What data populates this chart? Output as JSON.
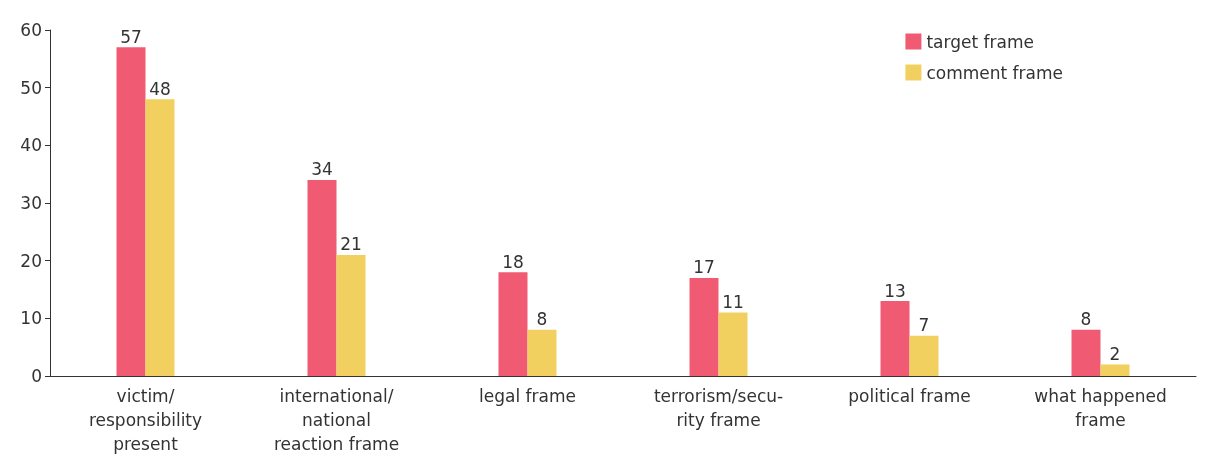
{
  "chart_data": {
    "type": "bar",
    "categories": [
      "victim/\nresponsibility\npresent",
      "international/\nnational\nreaction frame",
      "legal frame",
      "terrorism/secu-\nrity frame",
      "political frame",
      "what happened\nframe"
    ],
    "series": [
      {
        "name": "target frame",
        "color": "#f05a72",
        "values": [
          57,
          34,
          18,
          17,
          13,
          8
        ]
      },
      {
        "name": "comment frame",
        "color": "#f2d060",
        "values": [
          48,
          21,
          8,
          11,
          7,
          2
        ]
      }
    ],
    "ylim": [
      0,
      60
    ],
    "yticks": [
      0,
      10,
      20,
      30,
      40,
      50,
      60
    ],
    "data_labels": true,
    "grid": false,
    "legend": "top right"
  }
}
